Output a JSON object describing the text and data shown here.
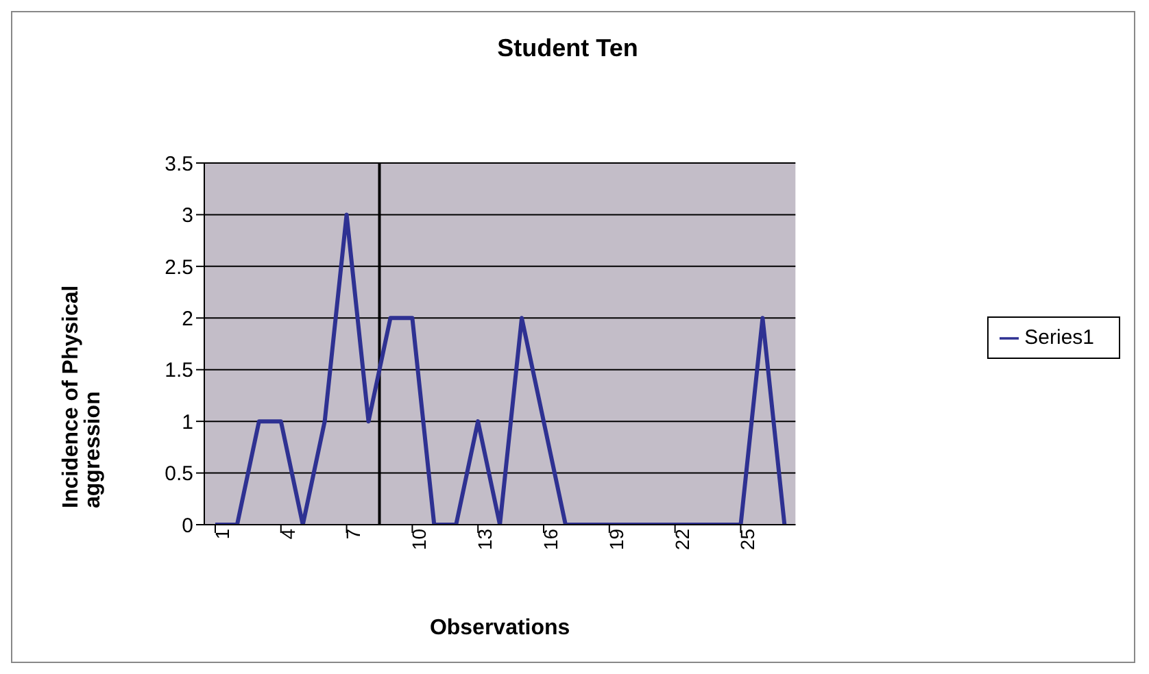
{
  "chart_data": {
    "type": "line",
    "title": "Student Ten",
    "xlabel": "Observations",
    "ylabel": "Incidence of Physical aggression",
    "x": [
      1,
      2,
      3,
      4,
      5,
      6,
      7,
      8,
      9,
      10,
      11,
      12,
      13,
      14,
      15,
      16,
      17,
      18,
      19,
      20,
      21,
      22,
      23,
      24,
      25,
      26,
      27
    ],
    "xlim": [
      0.5,
      27.5
    ],
    "xticks": [
      1,
      4,
      7,
      10,
      13,
      16,
      19,
      22,
      25
    ],
    "ylim": [
      0,
      3.5
    ],
    "yticks": [
      0,
      0.5,
      1,
      1.5,
      2,
      2.5,
      3,
      3.5
    ],
    "series": [
      {
        "name": "Series1",
        "color": "#2e3192",
        "values": [
          0,
          0,
          1,
          1,
          0,
          1,
          3,
          1,
          2,
          2,
          0,
          0,
          1,
          0,
          2,
          1,
          0,
          0,
          0,
          0,
          0,
          0,
          0,
          0,
          0,
          2,
          0
        ]
      }
    ],
    "ref_lines": [
      {
        "axis": "x",
        "value": 8.5,
        "color": "#000000"
      }
    ],
    "grid": "y",
    "legend": "right",
    "marker": "none",
    "line_style": "solid"
  }
}
